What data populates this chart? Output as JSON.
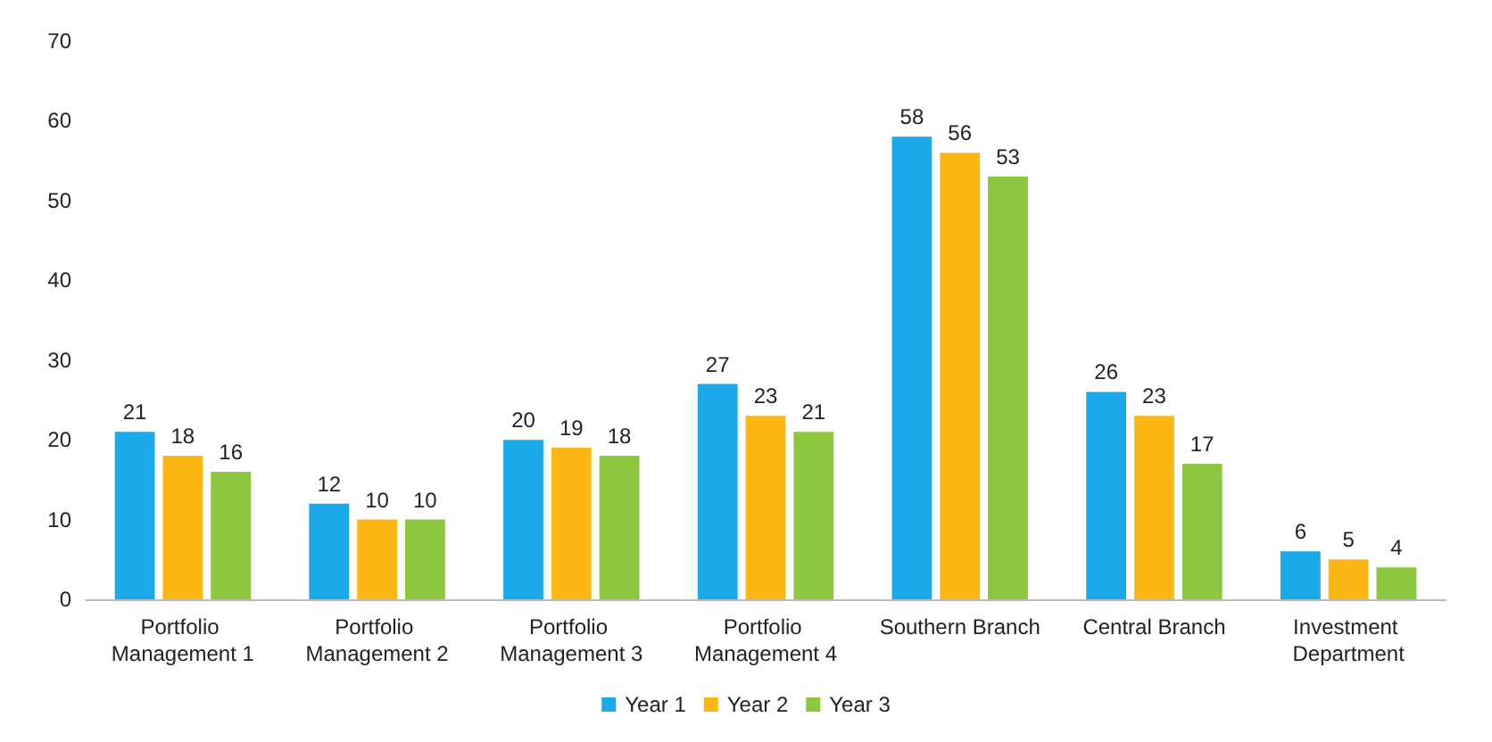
{
  "chart_data": {
    "type": "bar",
    "categories": [
      "Portfolio Management 1",
      "Portfolio Management 2",
      "Portfolio Management 3",
      "Portfolio Management 4",
      "Southern Branch",
      "Central Branch",
      "Investment Department"
    ],
    "series": [
      {
        "name": "Year 1",
        "color": "#1ba9e9",
        "values": [
          21,
          12,
          20,
          27,
          58,
          26,
          6
        ]
      },
      {
        "name": "Year 2",
        "color": "#fdb714",
        "values": [
          18,
          10,
          19,
          23,
          56,
          23,
          5
        ]
      },
      {
        "name": "Year 3",
        "color": "#8dc63f",
        "values": [
          16,
          10,
          18,
          21,
          53,
          17,
          4
        ]
      }
    ],
    "ylim": [
      0,
      70
    ],
    "yticks": [
      0,
      10,
      20,
      30,
      40,
      50,
      60,
      70
    ],
    "grid": false,
    "legend": "bottom",
    "data_labels": true
  }
}
